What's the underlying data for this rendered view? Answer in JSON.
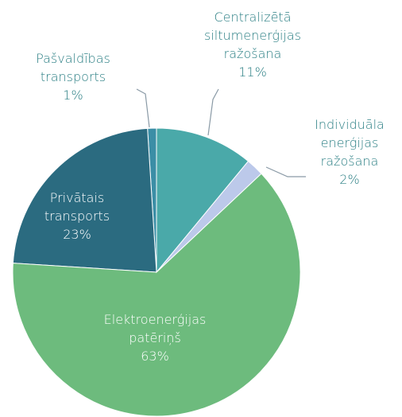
{
  "chart_data": {
    "type": "pie",
    "categories": [
      "Centralizētā siltumenerģijas ražošana",
      "Individuāla enerģijas ražošana",
      "Elektroenerģijas patēriņš",
      "Privātais transports",
      "Pašvaldības transports"
    ],
    "values": [
      11,
      2,
      63,
      23,
      1
    ],
    "value_labels": [
      "11%",
      "2%",
      "63%",
      "23%",
      "1%"
    ],
    "colors": [
      "#4aa9a9",
      "#bcc9ea",
      "#6dbb7d",
      "#2b6b80",
      "#3b8ea6"
    ]
  }
}
